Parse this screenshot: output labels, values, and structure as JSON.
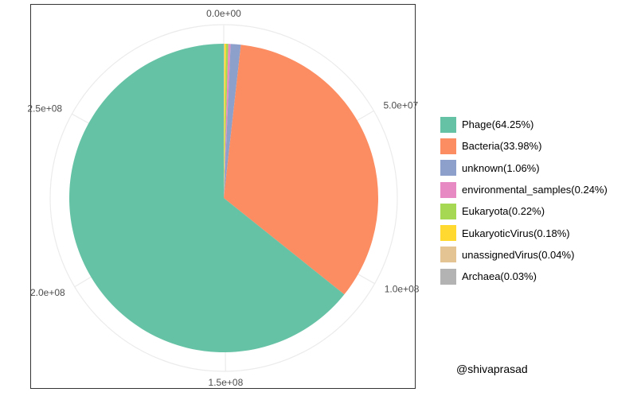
{
  "chart_data": {
    "type": "pie",
    "total": 301000000,
    "slices": [
      {
        "name": "Phage(64.25%)",
        "percent": 64.25,
        "color": "#66c2a5"
      },
      {
        "name": "Bacteria(33.98%)",
        "percent": 33.98,
        "color": "#fc8d62"
      },
      {
        "name": "unknown(1.06%)",
        "percent": 1.06,
        "color": "#8da0cb"
      },
      {
        "name": "environmental_samples(0.24%)",
        "percent": 0.24,
        "color": "#e78ac3"
      },
      {
        "name": "Eukaryota(0.22%)",
        "percent": 0.22,
        "color": "#a6d854"
      },
      {
        "name": "EukaryoticVirus(0.18%)",
        "percent": 0.18,
        "color": "#ffd92f"
      },
      {
        "name": "unassignedVirus(0.04%)",
        "percent": 0.04,
        "color": "#e5c494"
      },
      {
        "name": "Archaea(0.03%)",
        "percent": 0.03,
        "color": "#b3b3b3"
      }
    ],
    "slice_order": [
      7,
      6,
      5,
      4,
      3,
      2,
      1,
      0
    ],
    "direction": "clockwise",
    "start": "top",
    "ticks": [
      {
        "value": 0,
        "label": "0.0e+00"
      },
      {
        "value": 50000000,
        "label": "5.0e+07"
      },
      {
        "value": 100000000,
        "label": "1.0e+08"
      },
      {
        "value": 150000000,
        "label": "1.5e+08"
      },
      {
        "value": 200000000,
        "label": "2.0e+08"
      },
      {
        "value": 250000000,
        "label": "2.5e+08"
      }
    ],
    "grid": true,
    "legend_position": "right"
  },
  "credit": "@shivaprasad"
}
